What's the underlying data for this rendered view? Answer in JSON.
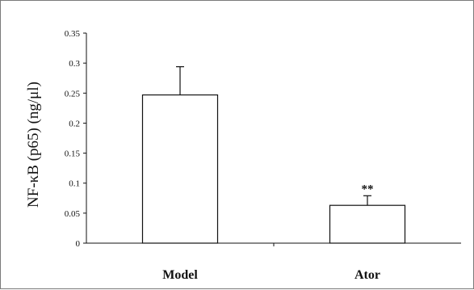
{
  "chart_data": {
    "type": "bar",
    "title": "",
    "xlabel": "",
    "ylabel": "NF-κB (p65) (ng/μl)",
    "categories": [
      "Model",
      "Ator"
    ],
    "values": [
      0.247,
      0.063
    ],
    "error_upper": [
      0.047,
      0.016
    ],
    "annotations": [
      "",
      "**"
    ],
    "ylim": [
      0,
      0.35
    ],
    "yticks": [
      0,
      0.05,
      0.1,
      0.15,
      0.2,
      0.25,
      0.3,
      0.35
    ],
    "ytick_labels": [
      "0",
      "0.05",
      "0.1",
      "0.15",
      "0.2",
      "0.25",
      "0.3",
      "0.35"
    ],
    "grid": false,
    "bar_fill": "#ffffff",
    "bar_stroke": "#111111"
  }
}
